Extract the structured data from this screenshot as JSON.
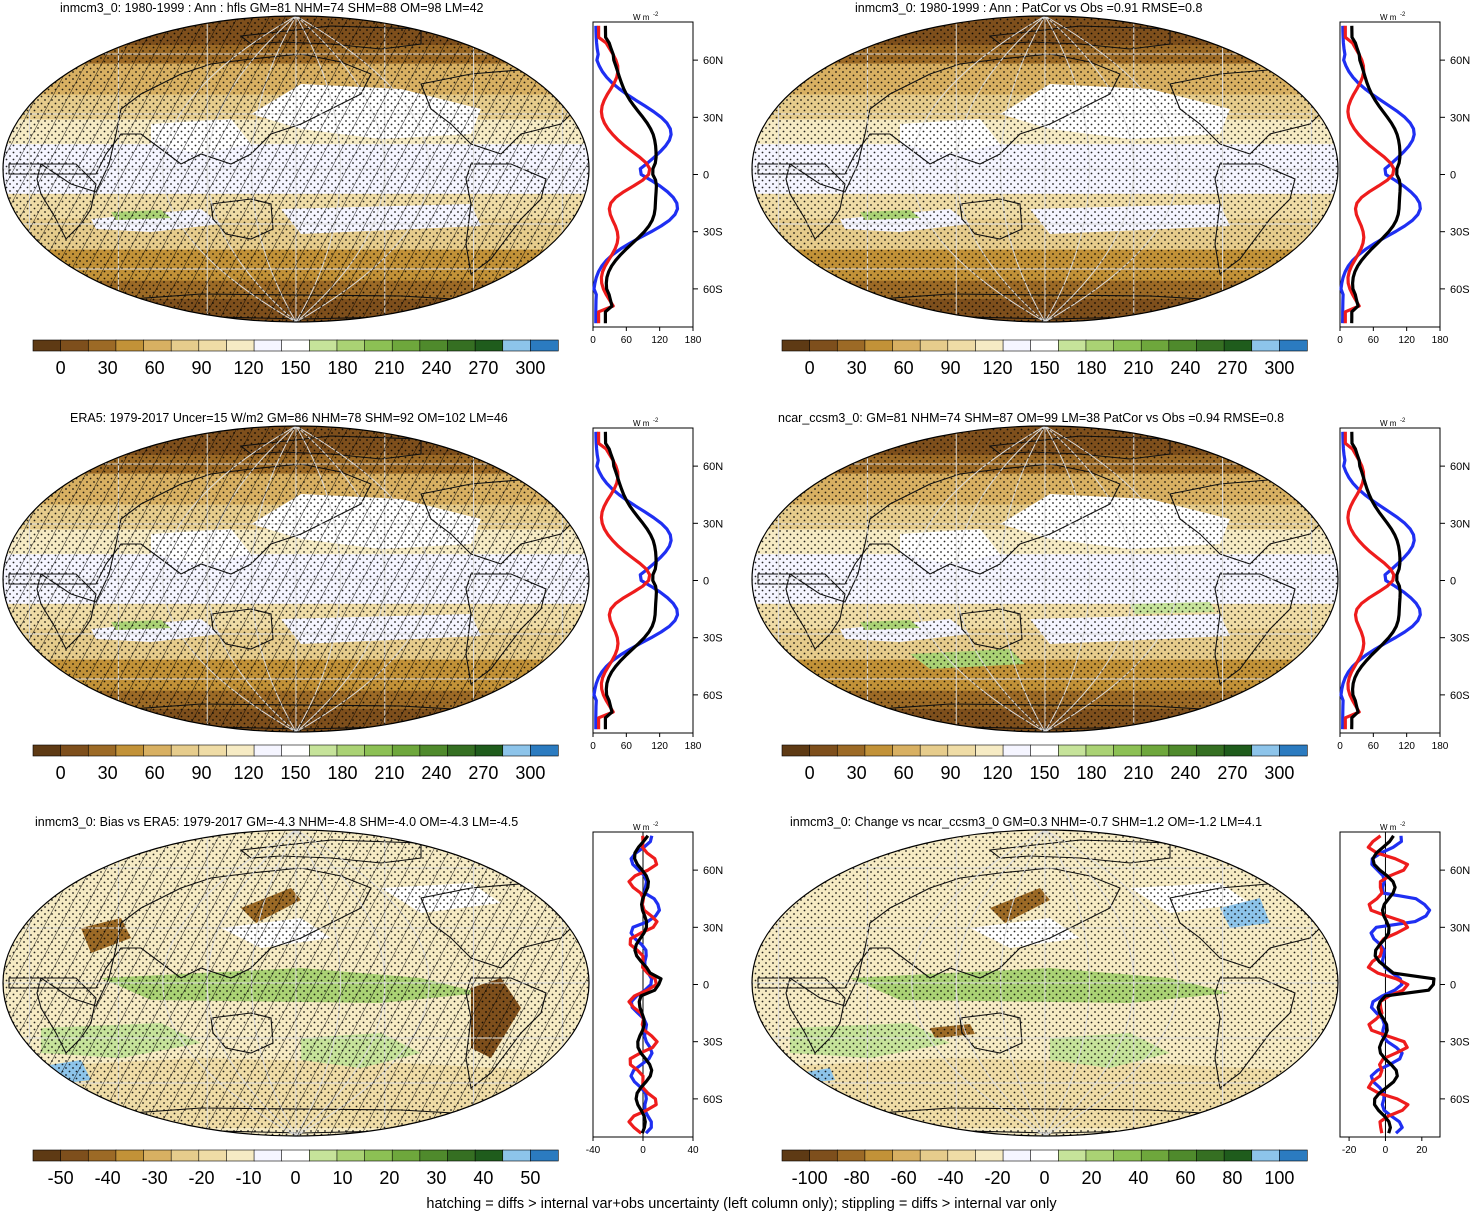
{
  "panels": [
    {
      "id": "p1",
      "title": "inmcm3_0: 1980-1999 : Ann : hfls GM=81 NHM=74 SHM=88 OM=98 LM=42",
      "kind": "abs",
      "hatching": true,
      "profile": {
        "unit": "W m-2",
        "unit_label": "W m",
        "xticks": [
          "0",
          "60",
          "120",
          "180"
        ],
        "xlim": [
          0,
          180
        ],
        "yticks": [
          "60N",
          "30N",
          "0",
          "30S",
          "60S"
        ]
      },
      "colorbar": {
        "labels": [
          "0",
          "30",
          "60",
          "90",
          "120",
          "150",
          "180",
          "210",
          "240",
          "270",
          "300"
        ]
      }
    },
    {
      "id": "p2",
      "title": "inmcm3_0: 1980-1999 : Ann : PatCor vs Obs =0.91 RMSE=0.8",
      "kind": "abs",
      "hatching": false,
      "profile": {
        "unit": "W m-2",
        "unit_label": "W m",
        "xticks": [
          "0",
          "60",
          "120",
          "180"
        ],
        "xlim": [
          0,
          180
        ],
        "yticks": [
          "60N",
          "30N",
          "0",
          "30S",
          "60S"
        ]
      },
      "colorbar": {
        "labels": [
          "0",
          "30",
          "60",
          "90",
          "120",
          "150",
          "180",
          "210",
          "240",
          "270",
          "300"
        ]
      }
    },
    {
      "id": "p3",
      "title": "ERA5: 1979-2017 Uncer=15 W/m2 GM=86 NHM=78 SHM=92 OM=102 LM=46",
      "kind": "abs",
      "hatching": true,
      "profile": {
        "unit": "W m-2",
        "unit_label": "W m",
        "xticks": [
          "0",
          "60",
          "120",
          "180"
        ],
        "xlim": [
          0,
          180
        ],
        "yticks": [
          "60N",
          "30N",
          "0",
          "30S",
          "60S"
        ]
      },
      "colorbar": {
        "labels": [
          "0",
          "30",
          "60",
          "90",
          "120",
          "150",
          "180",
          "210",
          "240",
          "270",
          "300"
        ]
      }
    },
    {
      "id": "p4",
      "title": "ncar_ccsm3_0: GM=81 NHM=74 SHM=87 OM=99 LM=38 PatCor vs Obs =0.94 RMSE=0.8",
      "kind": "abs",
      "hatching": false,
      "profile": {
        "unit": "W m-2",
        "unit_label": "W m",
        "xticks": [
          "0",
          "60",
          "120",
          "180"
        ],
        "xlim": [
          0,
          180
        ],
        "yticks": [
          "60N",
          "30N",
          "0",
          "30S",
          "60S"
        ]
      },
      "colorbar": {
        "labels": [
          "0",
          "30",
          "60",
          "90",
          "120",
          "150",
          "180",
          "210",
          "240",
          "270",
          "300"
        ]
      }
    },
    {
      "id": "p5",
      "title": "inmcm3_0: Bias vs ERA5: 1979-2017 GM=-4.3 NHM=-4.8 SHM=-4.0 OM=-4.3 LM=-4.5",
      "kind": "diff",
      "hatching": true,
      "profile": {
        "unit": "W m-2",
        "unit_label": "W m",
        "xticks": [
          "-40",
          "0",
          "40"
        ],
        "xlim": [
          -40,
          40
        ],
        "yticks": [
          "60N",
          "30N",
          "0",
          "30S",
          "60S"
        ]
      },
      "colorbar": {
        "labels": [
          "-50",
          "-40",
          "-30",
          "-20",
          "-10",
          "0",
          "10",
          "20",
          "30",
          "40",
          "50"
        ]
      }
    },
    {
      "id": "p6",
      "title": "inmcm3_0: Change vs ncar_ccsm3_0 GM=0.3 NHM=-0.7 SHM=1.2 OM=-1.2 LM=4.1",
      "kind": "diff",
      "hatching": false,
      "profile": {
        "unit": "W m-2",
        "unit_label": "W m",
        "xticks": [
          "-20",
          "0",
          "20"
        ],
        "xlim": [
          -25,
          30
        ],
        "yticks": [
          "60N",
          "30N",
          "0",
          "30S",
          "60S"
        ]
      },
      "colorbar": {
        "labels": [
          "-100",
          "-80",
          "-60",
          "-40",
          "-20",
          "0",
          "20",
          "40",
          "60",
          "80",
          "100"
        ]
      }
    }
  ],
  "colors": {
    "palette": [
      "#5e3a14",
      "#7e4f1c",
      "#9c6a26",
      "#c29238",
      "#d8b062",
      "#e6cc8c",
      "#efdca6",
      "#f6ebc4",
      "#f5f5ff",
      "#ffffff",
      "#c6e39a",
      "#aad274",
      "#8cc054",
      "#6ea73c",
      "#4f8a2c",
      "#356f22",
      "#1f5c1c",
      "#8dc4ea",
      "#2b7bc0"
    ],
    "line_blue": "#1f2ff2",
    "line_red": "#ee1c1c",
    "line_black": "#000000"
  },
  "footnote": "hatching = diffs > internal var+obs uncertainty (left column only); stippling = diffs > internal var only"
}
